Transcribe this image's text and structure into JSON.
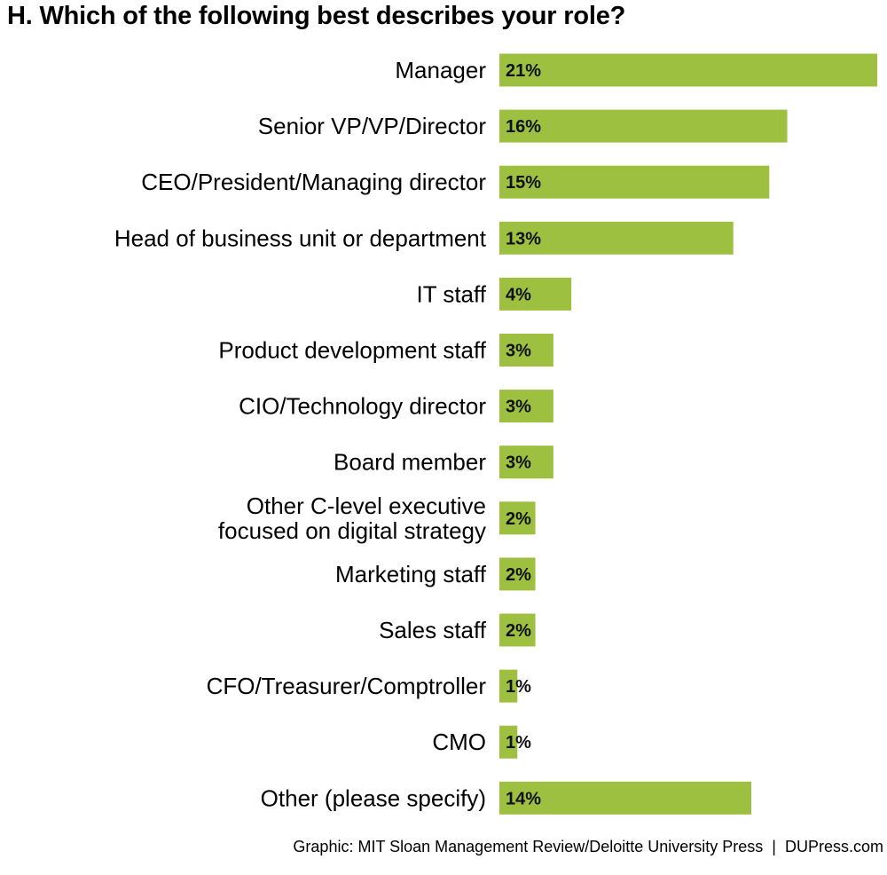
{
  "chart_data": {
    "type": "bar",
    "orientation": "horizontal",
    "title": "H. Which of the following best describes your role?",
    "categories": [
      "Manager",
      "Senior VP/VP/Director",
      "CEO/President/Managing director",
      "Head of business unit or department",
      "IT staff",
      "Product development staff",
      "CIO/Technology director",
      "Board member",
      "Other C-level executive focused on digital strategy",
      "Marketing staff",
      "Sales staff",
      "CFO/Treasurer/Comptroller",
      "CMO",
      "Other (please specify)"
    ],
    "category_lines": [
      [
        "Manager"
      ],
      [
        "Senior VP/VP/Director"
      ],
      [
        "CEO/President/Managing director"
      ],
      [
        "Head of business unit or department"
      ],
      [
        "IT staff"
      ],
      [
        "Product development staff"
      ],
      [
        "CIO/Technology director"
      ],
      [
        "Board member"
      ],
      [
        "Other C-level executive",
        "focused on digital strategy"
      ],
      [
        "Marketing staff"
      ],
      [
        "Sales staff"
      ],
      [
        "CFO/Treasurer/Comptroller"
      ],
      [
        "CMO"
      ],
      [
        "Other (please specify)"
      ]
    ],
    "values": [
      21,
      16,
      15,
      13,
      4,
      3,
      3,
      3,
      2,
      2,
      2,
      1,
      1,
      14
    ],
    "value_labels": [
      "21%",
      "16%",
      "15%",
      "13%",
      "4%",
      "3%",
      "3%",
      "3%",
      "2%",
      "2%",
      "2%",
      "1%",
      "1%",
      "14%"
    ],
    "xlim": [
      0,
      21
    ],
    "unit": "%",
    "bar_color": "#9dc040",
    "grid": false,
    "legend": "none"
  },
  "footer": {
    "credit": "Graphic: MIT Sloan Management Review/Deloitte University Press",
    "separator": "|",
    "site": "DUPress.com"
  }
}
